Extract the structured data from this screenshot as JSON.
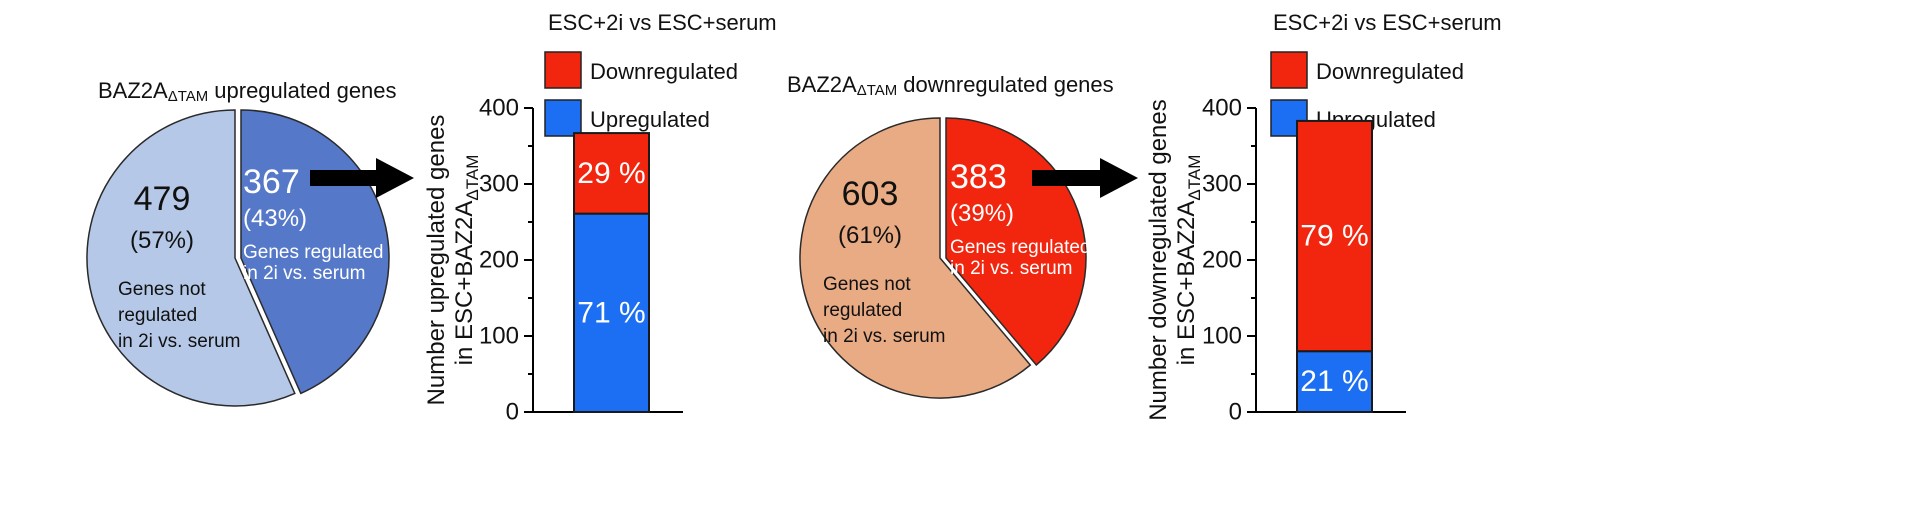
{
  "chart_data": [
    {
      "type": "pie",
      "title": {
        "prefix": "BAZ2A",
        "subscript": "ΔTAM",
        "suffix": " upregulated genes"
      },
      "slices": [
        {
          "value": 367,
          "percent_label": "(43%)",
          "note": [
            "Genes regulated",
            "in 2i vs. serum"
          ],
          "color": "#5578c8"
        },
        {
          "value": 479,
          "percent_label": "(57%)",
          "note": [
            "Genes not",
            "regulated",
            "in 2i vs. serum"
          ],
          "color": "#b6c8e8"
        }
      ]
    },
    {
      "type": "bar",
      "stacked": true,
      "legend_title": "ESC+2i vs ESC+serum",
      "legend_placement": "top",
      "ylabel": {
        "line1": "Number upregulated genes",
        "line2_prefix": "in ESC+BAZ2A",
        "line2_subscript": "ΔTAM"
      },
      "ylim": [
        0,
        400
      ],
      "yticks": [
        0,
        100,
        200,
        300,
        400
      ],
      "grid": false,
      "series": [
        {
          "name": "Upregulated",
          "value": 261,
          "label": "71 %",
          "color": "#1c6ef2"
        },
        {
          "name": "Downregulated",
          "value": 106,
          "label": "29 %",
          "color": "#f2260f"
        }
      ]
    },
    {
      "type": "pie",
      "title": {
        "prefix": "BAZ2A",
        "subscript": "ΔTAM",
        "suffix": " downregulated genes"
      },
      "slices": [
        {
          "value": 383,
          "percent_label": "(39%)",
          "note": [
            "Genes regulated",
            "in 2i vs. serum"
          ],
          "color": "#f2260f"
        },
        {
          "value": 603,
          "percent_label": "(61%)",
          "note": [
            "Genes not",
            "regulated",
            "in 2i vs. serum"
          ],
          "color": "#e8ab84"
        }
      ]
    },
    {
      "type": "bar",
      "stacked": true,
      "legend_title": "ESC+2i vs ESC+serum",
      "legend_placement": "top",
      "ylabel": {
        "line1": "Number downregulated genes",
        "line2_prefix": "in ESC+BAZ2A",
        "line2_subscript": "ΔTAM"
      },
      "ylim": [
        0,
        400
      ],
      "yticks": [
        0,
        100,
        200,
        300,
        400
      ],
      "grid": false,
      "series": [
        {
          "name": "Upregulated",
          "value": 80,
          "label": "21 %",
          "color": "#1c6ef2"
        },
        {
          "name": "Downregulated",
          "value": 303,
          "label": "79 %",
          "color": "#f2260f"
        }
      ]
    }
  ]
}
